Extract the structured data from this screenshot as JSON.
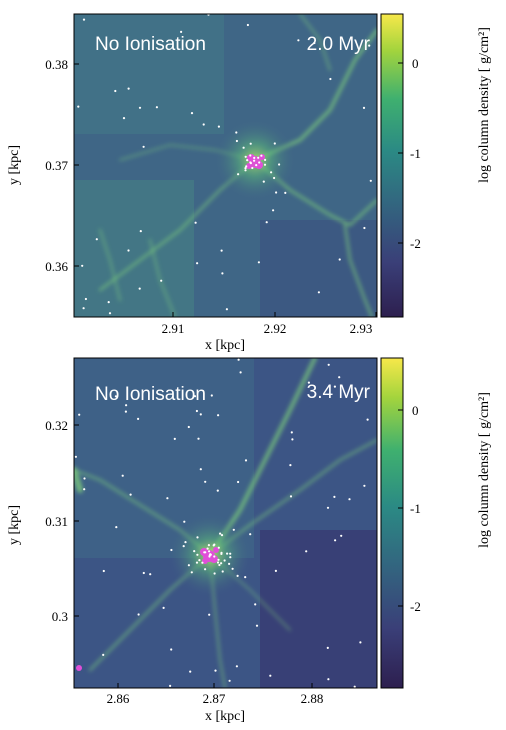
{
  "panels": [
    {
      "label": "No Ionisation",
      "time": "2.0 Myr",
      "xlabel": "x [kpc]",
      "ylabel": "y [kpc]",
      "xticks": [
        "2.91",
        "2.92",
        "2.93"
      ],
      "yticks": [
        "0.38",
        "0.37",
        "0.36"
      ],
      "colorbar": {
        "label": "log column density [ g/cm²]",
        "ticks": [
          "0",
          "-1",
          "-2"
        ]
      }
    },
    {
      "label": "No Ionisation",
      "time": "3.4 Myr",
      "xlabel": "x [kpc]",
      "ylabel": "y [kpc]",
      "xticks": [
        "2.86",
        "2.87",
        "2.88"
      ],
      "yticks": [
        "0.32",
        "0.31",
        "0.3"
      ],
      "colorbar": {
        "label": "log column density [ g/cm²]",
        "ticks": [
          "0",
          "-1",
          "-2"
        ]
      }
    }
  ],
  "colors": {
    "colormap": [
      "#2d1f4f",
      "#3a3f78",
      "#33637f",
      "#2b8a84",
      "#3fb06f",
      "#a3d43d",
      "#f7e84a"
    ],
    "background": "#3f5f86",
    "filament": "#7fd07a",
    "stars": "#ffffff",
    "cluster": "#e04fd8"
  }
}
